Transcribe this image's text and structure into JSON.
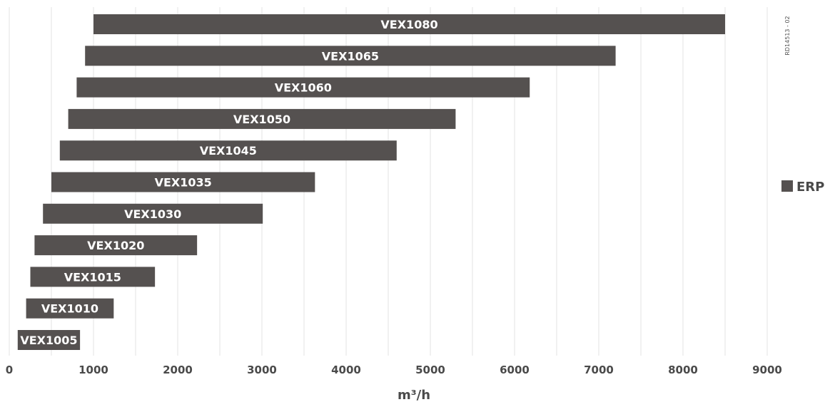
{
  "chart_data": {
    "type": "bar",
    "orientation": "horizontal",
    "categories": [
      "VEX1080",
      "VEX1065",
      "VEX1060",
      "VEX1050",
      "VEX1045",
      "VEX1035",
      "VEX1030",
      "VEX1020",
      "VEX1015",
      "VEX1010",
      "VEX1005"
    ],
    "series": [
      {
        "name": "ERP",
        "color": "#555150",
        "ranges": [
          [
            1000,
            8500
          ],
          [
            900,
            7200
          ],
          [
            800,
            6180
          ],
          [
            700,
            5300
          ],
          [
            600,
            4600
          ],
          [
            500,
            3630
          ],
          [
            400,
            3010
          ],
          [
            300,
            2230
          ],
          [
            250,
            1730
          ],
          [
            200,
            1240
          ],
          [
            100,
            840
          ]
        ]
      }
    ],
    "xlabel": "m³/h",
    "xlim": [
      0,
      9000
    ],
    "xticks": [
      "0",
      "1000",
      "2000",
      "3000",
      "4000",
      "5000",
      "6000",
      "7000",
      "8000",
      "9000"
    ],
    "grid": true,
    "legend_position": "right",
    "reference_code": "RD14513 - 02"
  }
}
